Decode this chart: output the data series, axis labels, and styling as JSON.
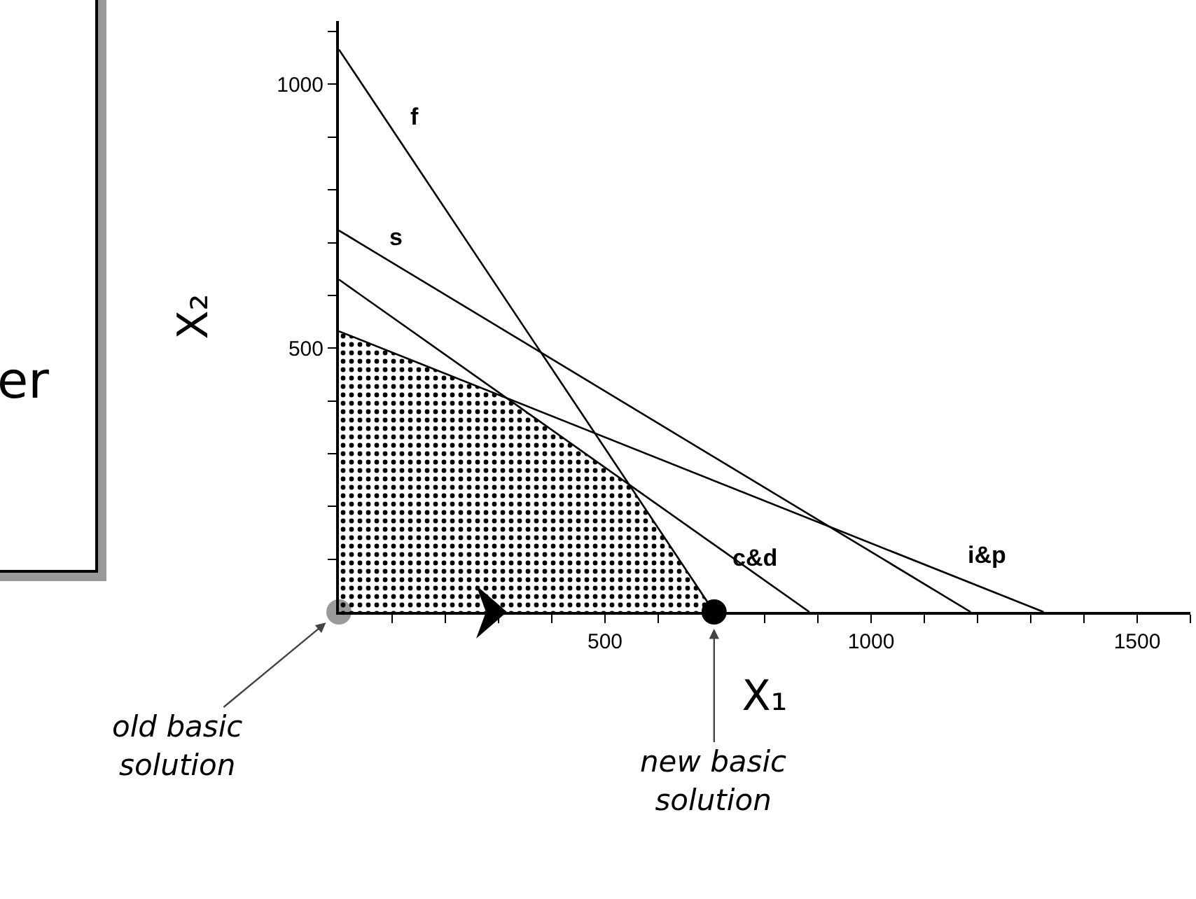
{
  "chart_data": {
    "type": "line",
    "xlabel": "X₁",
    "ylabel": "X₂",
    "xlim": [
      0,
      1600
    ],
    "ylim": [
      0,
      1120
    ],
    "xticks": [
      {
        "value": 100,
        "label": null
      },
      {
        "value": 200,
        "label": null
      },
      {
        "value": 300,
        "label": null
      },
      {
        "value": 400,
        "label": null
      },
      500,
      {
        "value": 600,
        "label": null
      },
      {
        "value": 700,
        "label": null
      },
      {
        "value": 800,
        "label": null
      },
      {
        "value": 900,
        "label": null
      },
      1000,
      {
        "value": 1100,
        "label": null
      },
      {
        "value": 1200,
        "label": null
      },
      {
        "value": 1300,
        "label": null
      },
      {
        "value": 1400,
        "label": null
      },
      1500,
      {
        "value": 1600,
        "label": null
      }
    ],
    "yticks": [
      {
        "value": 100,
        "label": null
      },
      {
        "value": 200,
        "label": null
      },
      {
        "value": 300,
        "label": null
      },
      {
        "value": 400,
        "label": null
      },
      500,
      {
        "value": 600,
        "label": null
      },
      {
        "value": 700,
        "label": null
      },
      {
        "value": 800,
        "label": null
      },
      {
        "value": 900,
        "label": null
      },
      1000,
      {
        "value": 1100,
        "label": null
      }
    ],
    "grid": false,
    "legend": false,
    "marker": "none",
    "line_style": "solid",
    "series": [
      {
        "type": "area",
        "color": "#000000",
        "x": [
          0,
          0,
          315,
          546,
          705
        ],
        "values": [
          0,
          532,
          405,
          241,
          0
        ]
      },
      {
        "name": "f",
        "color": "#000000",
        "x": [
          0,
          705
        ],
        "values": [
          1066,
          0
        ]
      },
      {
        "name": "s",
        "color": "#000000",
        "x": [
          0,
          1187
        ],
        "values": [
          723,
          0
        ]
      },
      {
        "name": "c&d",
        "color": "#000000",
        "x": [
          0,
          884
        ],
        "values": [
          630,
          0
        ]
      },
      {
        "name": "i&p",
        "color": "#000000",
        "x": [
          0,
          1324
        ],
        "values": [
          532,
          0
        ]
      },
      {
        "type": "scatter",
        "marker": "circle",
        "x": [
          0,
          705
        ],
        "values": [
          0,
          0
        ],
        "colors": [
          "#999999",
          "#000000"
        ]
      }
    ],
    "annotations": [
      "er",
      {
        "text": "old basic solution",
        "x": 0,
        "y": 0
      },
      {
        "text": "new basic solution",
        "x": 705,
        "y": 0
      }
    ]
  }
}
